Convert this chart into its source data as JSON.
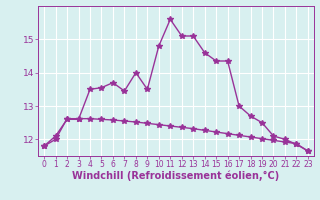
{
  "xlabel": "Windchill (Refroidissement éolien,°C)",
  "x_values": [
    0,
    1,
    2,
    3,
    4,
    5,
    6,
    7,
    8,
    9,
    10,
    11,
    12,
    13,
    14,
    15,
    16,
    17,
    18,
    19,
    20,
    21,
    22,
    23
  ],
  "line1_y": [
    11.8,
    12.1,
    12.6,
    12.6,
    13.5,
    13.55,
    13.7,
    13.45,
    14.0,
    13.5,
    14.8,
    15.6,
    15.1,
    15.1,
    14.6,
    14.35,
    14.35,
    13.0,
    12.7,
    12.5,
    12.1,
    12.0,
    11.85,
    11.65
  ],
  "line2_y": [
    11.8,
    12.0,
    12.62,
    12.62,
    12.62,
    12.6,
    12.58,
    12.55,
    12.52,
    12.48,
    12.44,
    12.4,
    12.36,
    12.32,
    12.27,
    12.22,
    12.17,
    12.12,
    12.07,
    12.02,
    11.97,
    11.92,
    11.87,
    11.65
  ],
  "line_color": "#993399",
  "bg_color": "#d8f0f0",
  "plot_bg_color": "#d8f0f0",
  "grid_color": "#ffffff",
  "ylim_min": 11.5,
  "ylim_max": 16.0,
  "yticks": [
    12,
    13,
    14,
    15
  ],
  "xticks": [
    0,
    1,
    2,
    3,
    4,
    5,
    6,
    7,
    8,
    9,
    10,
    11,
    12,
    13,
    14,
    15,
    16,
    17,
    18,
    19,
    20,
    21,
    22,
    23
  ],
  "marker": "*",
  "markersize": 4,
  "linewidth": 1.0,
  "xlabel_fontsize": 7,
  "xtick_fontsize": 5.5,
  "ytick_fontsize": 6.5,
  "tick_color": "#993399",
  "label_color": "#993399"
}
